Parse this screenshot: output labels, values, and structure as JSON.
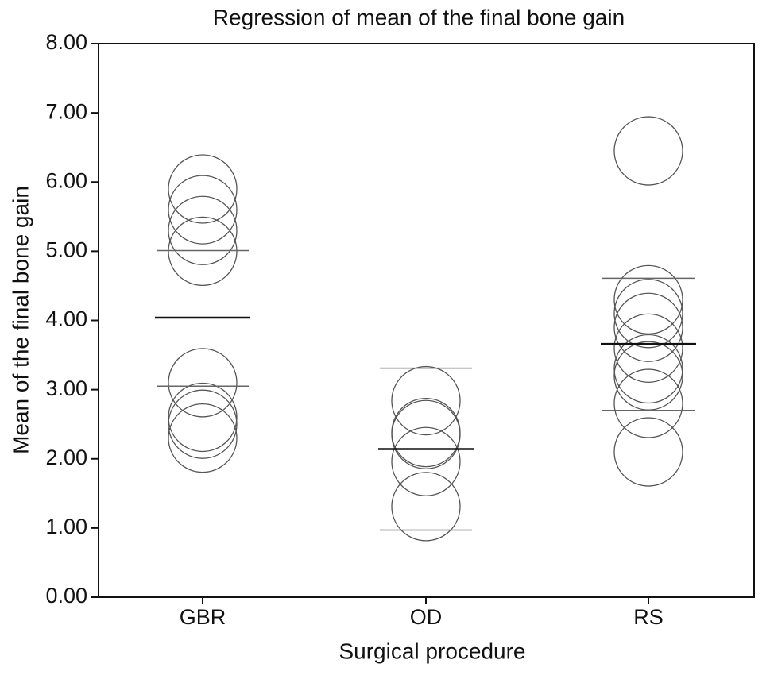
{
  "chart_data": {
    "type": "strip",
    "title": "Regression of mean of the final bone gain",
    "x_label": "Surgical procedure",
    "y_label": "Mean of the final bone gain",
    "categories": [
      "GBR",
      "OD",
      "RS"
    ],
    "values": [
      [
        5.9,
        5.6,
        5.3,
        5.0,
        3.1,
        2.6,
        2.5,
        2.3
      ],
      [
        2.84,
        2.38,
        2.35,
        1.96,
        1.31
      ],
      [
        6.45,
        4.3,
        4.1,
        3.9,
        3.6,
        3.3,
        3.2,
        2.8,
        2.1
      ]
    ],
    "means": [
      4.04,
      2.14,
      3.66
    ],
    "upper": [
      5.01,
      3.31,
      4.61
    ],
    "lower": [
      3.05,
      0.97,
      2.7
    ],
    "color": "#555555",
    "ylim": [
      0,
      8
    ],
    "yticks": [
      {
        "value": 0,
        "label": "0.00"
      },
      {
        "value": 1,
        "label": "1.00"
      },
      {
        "value": 2,
        "label": "2.00"
      },
      {
        "value": 3,
        "label": "3.00"
      },
      {
        "value": 4,
        "label": "4.00"
      },
      {
        "value": 5,
        "label": "5.00"
      },
      {
        "value": 6,
        "label": "6.00"
      },
      {
        "value": 7,
        "label": "7.00"
      },
      {
        "value": 8,
        "label": "8.00"
      }
    ]
  }
}
